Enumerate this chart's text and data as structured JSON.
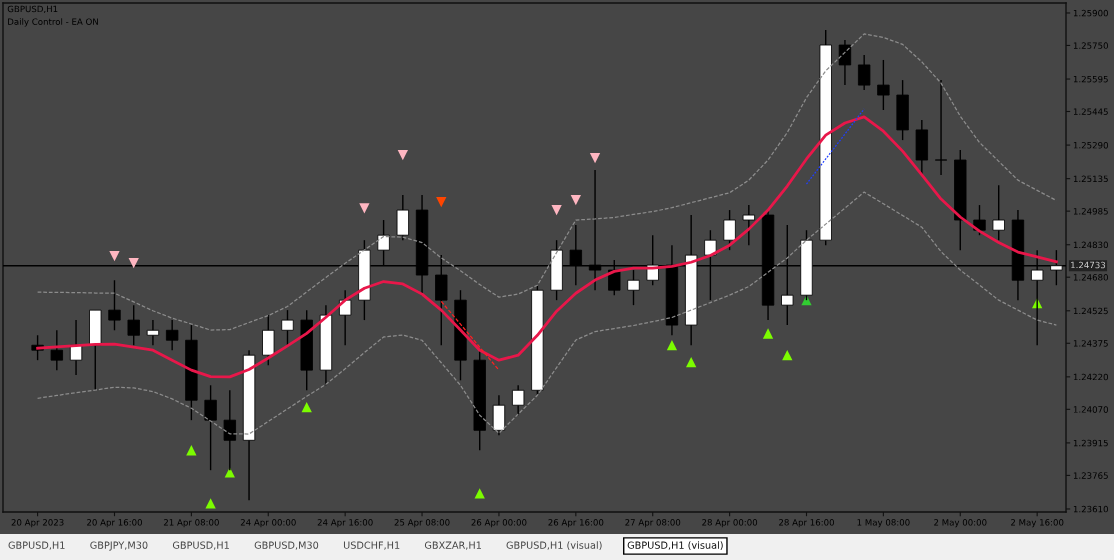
{
  "chart_data": {
    "type": "candlestick",
    "title": "GBPUSD,H1",
    "subtitle": "Daily Control - EA ON",
    "annotations": [
      "GBPUSD,H1",
      "GBPJPY,M30",
      "GBPUSD,H1",
      "GBPUSD,M30",
      "USDCHF,H1",
      "GBXZAR,H1",
      "GBPUSD,H1 (visual)",
      "GBPUSD,H1 (visual)"
    ],
    "color": "#000000",
    "categories": [
      "20 Apr 2023",
      null,
      null,
      null,
      "20 Apr 16:00",
      null,
      null,
      null,
      "21 Apr 08:00",
      null,
      null,
      null,
      "24 Apr 00:00",
      null,
      null,
      null,
      "24 Apr 16:00",
      null,
      null,
      null,
      "25 Apr 08:00",
      null,
      null,
      null,
      "26 Apr 00:00",
      null,
      null,
      null,
      "26 Apr 16:00",
      null,
      null,
      null,
      "27 Apr 08:00",
      null,
      null,
      null,
      "28 Apr 00:00",
      null,
      null,
      null,
      "28 Apr 16:00",
      null,
      null,
      null,
      "1 May 08:00",
      null,
      null,
      null,
      "2 May 00:00",
      null,
      null,
      null,
      "2 May 16:00",
      null
    ],
    "ohlc": [
      [
        1.24366,
        1.24412,
        1.24297,
        1.24343
      ],
      [
        1.24343,
        1.24435,
        1.24251,
        1.24297
      ],
      [
        1.24297,
        1.24482,
        1.24228,
        1.24366
      ],
      [
        1.24366,
        1.24528,
        1.24158,
        1.24528
      ],
      [
        1.24528,
        1.24666,
        1.24435,
        1.24482
      ],
      [
        1.24482,
        1.24551,
        1.24366,
        1.24412
      ],
      [
        1.24412,
        1.24482,
        1.24366,
        1.24435
      ],
      [
        1.24435,
        1.24482,
        1.24343,
        1.24389
      ],
      [
        1.24389,
        1.24459,
        1.2402,
        1.24112
      ],
      [
        1.24112,
        1.24181,
        1.23789,
        1.2402
      ],
      [
        1.2402,
        1.24158,
        1.23789,
        1.23927
      ],
      [
        1.23927,
        1.24343,
        1.2365,
        1.2432
      ],
      [
        1.2432,
        1.24505,
        1.24274,
        1.24435
      ],
      [
        1.24435,
        1.24528,
        1.24366,
        1.24482
      ],
      [
        1.24482,
        1.24528,
        1.24158,
        1.24251
      ],
      [
        1.24251,
        1.24551,
        1.24181,
        1.24505
      ],
      [
        1.24505,
        1.2462,
        1.24366,
        1.24574
      ],
      [
        1.24574,
        1.24851,
        1.24482,
        1.24805
      ],
      [
        1.24805,
        1.24944,
        1.24736,
        1.24874
      ],
      [
        1.24874,
        1.25059,
        1.24851,
        1.2499
      ],
      [
        1.2499,
        1.25059,
        1.24597,
        1.2469
      ],
      [
        1.2469,
        1.24782,
        1.24366,
        1.24574
      ],
      [
        1.24574,
        1.2462,
        1.24204,
        1.24297
      ],
      [
        1.24297,
        1.24343,
        1.23881,
        1.23973
      ],
      [
        1.23973,
        1.24135,
        1.2395,
        1.24089
      ],
      [
        1.24089,
        1.24181,
        1.24043,
        1.24158
      ],
      [
        1.24158,
        1.24643,
        1.24135,
        1.2462
      ],
      [
        1.2462,
        1.24851,
        1.24574,
        1.24805
      ],
      [
        1.24805,
        1.24921,
        1.24643,
        1.24736
      ],
      [
        1.24736,
        1.25175,
        1.2462,
        1.24713
      ],
      [
        1.24713,
        1.24759,
        1.24597,
        1.2462
      ],
      [
        1.2462,
        1.24713,
        1.24551,
        1.24666
      ],
      [
        1.24666,
        1.24874,
        1.24643,
        1.24736
      ],
      [
        1.24736,
        1.24828,
        1.24412,
        1.24459
      ],
      [
        1.24459,
        1.24967,
        1.24366,
        1.24782
      ],
      [
        1.24782,
        1.24897,
        1.24574,
        1.24851
      ],
      [
        1.24851,
        1.2499,
        1.24805,
        1.24944
      ],
      [
        1.24944,
        1.25013,
        1.24828,
        1.24967
      ],
      [
        1.24967,
        1.2499,
        1.24482,
        1.24551
      ],
      [
        1.24551,
        1.24921,
        1.24459,
        1.24597
      ],
      [
        1.24597,
        1.24897,
        1.24574,
        1.24851
      ],
      [
        1.24851,
        1.25821,
        1.24828,
        1.25752
      ],
      [
        1.25752,
        1.25775,
        1.25567,
        1.2566
      ],
      [
        1.2566,
        1.25706,
        1.25544,
        1.25567
      ],
      [
        1.25567,
        1.25683,
        1.25452,
        1.25521
      ],
      [
        1.25521,
        1.2559,
        1.25313,
        1.2536
      ],
      [
        1.2536,
        1.25406,
        1.25152,
        1.25221
      ],
      [
        1.25221,
        1.2559,
        1.25152,
        1.25221
      ],
      [
        1.25221,
        1.25267,
        1.24805,
        1.24944
      ],
      [
        1.24944,
        1.25013,
        1.24874,
        1.24897
      ],
      [
        1.24897,
        1.25105,
        1.24851,
        1.24944
      ],
      [
        1.24944,
        1.2499,
        1.24574,
        1.24666
      ],
      [
        1.24666,
        1.24805,
        1.24366,
        1.24713
      ],
      [
        1.24713,
        1.24805,
        1.24643,
        1.24733
      ]
    ],
    "series": [
      {
        "type": "line",
        "color": "#e8174a",
        "line_style": "solid",
        "values": [
          1.24352,
          1.24358,
          1.24364,
          1.2437,
          1.24371,
          1.24357,
          1.24343,
          1.24297,
          1.24251,
          1.24221,
          1.2422,
          1.24254,
          1.24307,
          1.24363,
          1.24421,
          1.24495,
          1.24574,
          1.24629,
          1.2466,
          1.24649,
          1.24602,
          1.24528,
          1.24436,
          1.24343,
          1.24297,
          1.2432,
          1.24412,
          1.24523,
          1.24606,
          1.24667,
          1.24707,
          1.24722,
          1.24722,
          1.2473,
          1.24749,
          1.2478,
          1.24828,
          1.24902,
          1.2499,
          1.25101,
          1.25226,
          1.25336,
          1.25392,
          1.2542,
          1.25354,
          1.25262,
          1.25152,
          1.25041,
          1.24958,
          1.24893,
          1.2484,
          1.24796,
          1.24774,
          1.24751
        ]
      },
      {
        "type": "line",
        "color": "#8c8c8c",
        "line_style": "dashed",
        "values": [
          1.24611,
          1.2461,
          1.24609,
          1.24607,
          1.24606,
          1.24566,
          1.24525,
          1.24491,
          1.24464,
          1.24436,
          1.24438,
          1.24471,
          1.24503,
          1.24545,
          1.24612,
          1.24679,
          1.24744,
          1.24806,
          1.24868,
          1.24865,
          1.2484,
          1.24769,
          1.2471,
          1.24646,
          1.24588,
          1.24602,
          1.24643,
          1.24794,
          1.24944,
          1.24949,
          1.24956,
          1.2497,
          1.24983,
          1.25001,
          1.25024,
          1.25047,
          1.2507,
          1.25128,
          1.25221,
          1.25348,
          1.25509,
          1.25633,
          1.25718,
          1.25803,
          1.25787,
          1.25755,
          1.25674,
          1.25576,
          1.25423,
          1.25302,
          1.25215,
          1.25128,
          1.25081,
          1.25034
        ]
      },
      {
        "type": "line",
        "color": "#8c8c8c",
        "line_style": "dashed",
        "values": [
          1.24121,
          1.24134,
          1.24147,
          1.24159,
          1.24172,
          1.24169,
          1.24152,
          1.24118,
          1.24075,
          1.24016,
          1.23957,
          1.23956,
          1.24014,
          1.24072,
          1.2413,
          1.24186,
          1.24257,
          1.24332,
          1.24404,
          1.24413,
          1.24389,
          1.24285,
          1.24181,
          1.24043,
          1.2396,
          1.24048,
          1.24135,
          1.24263,
          1.2439,
          1.24429,
          1.24443,
          1.24457,
          1.24475,
          1.24494,
          1.24528,
          1.24563,
          1.24597,
          1.24637,
          1.24703,
          1.24769,
          1.24851,
          1.24925,
          1.24999,
          1.25073,
          1.25019,
          1.24965,
          1.24911,
          1.24798,
          1.24713,
          1.24644,
          1.24574,
          1.24528,
          1.24482,
          1.24459
        ]
      },
      {
        "type": "line",
        "color": "#ff2020",
        "line_style": "dashed",
        "values": [
          null,
          null,
          null,
          null,
          null,
          null,
          null,
          null,
          null,
          null,
          null,
          null,
          null,
          null,
          null,
          null,
          null,
          null,
          null,
          null,
          null,
          1.24568,
          1.24463,
          1.24357,
          1.24251,
          null,
          null,
          null,
          null,
          null,
          null,
          null,
          null,
          null,
          null,
          null,
          null,
          null,
          null,
          null,
          null,
          null,
          null,
          null,
          null,
          null,
          null,
          null,
          null,
          null,
          null,
          null,
          null,
          null
        ]
      },
      {
        "type": "line",
        "color": "#2040ff",
        "line_style": "dotted",
        "values": [
          null,
          null,
          null,
          null,
          null,
          null,
          null,
          null,
          null,
          null,
          null,
          null,
          null,
          null,
          null,
          null,
          null,
          null,
          null,
          null,
          null,
          null,
          null,
          null,
          null,
          null,
          null,
          null,
          null,
          null,
          null,
          null,
          null,
          null,
          null,
          null,
          null,
          null,
          null,
          null,
          1.2511,
          1.25226,
          1.25341,
          1.25457,
          null,
          null,
          null,
          null,
          null,
          null,
          null,
          null,
          null,
          null
        ]
      },
      {
        "type": "scatter",
        "color": "#ffb6c1",
        "marker": "triangle_down",
        "values": [
          null,
          null,
          null,
          null,
          1.24777,
          1.24745,
          null,
          null,
          null,
          null,
          null,
          null,
          null,
          null,
          null,
          null,
          null,
          1.24998,
          null,
          1.25244,
          null,
          null,
          null,
          null,
          null,
          null,
          null,
          1.2499,
          1.25036,
          1.2523,
          null,
          null,
          null,
          null,
          null,
          null,
          null,
          null,
          null,
          null,
          null,
          null,
          null,
          null,
          null,
          null,
          null,
          null,
          null,
          null,
          null,
          null,
          null,
          null
        ]
      },
      {
        "type": "scatter",
        "color": "#ff4500",
        "marker": "triangle_down",
        "values": [
          null,
          null,
          null,
          null,
          null,
          null,
          null,
          null,
          null,
          null,
          null,
          null,
          null,
          null,
          null,
          null,
          null,
          null,
          null,
          null,
          null,
          1.25027,
          null,
          null,
          null,
          null,
          null,
          null,
          null,
          null,
          null,
          null,
          null,
          null,
          null,
          null,
          null,
          null,
          null,
          null,
          null,
          null,
          null,
          null,
          null,
          null,
          null,
          null,
          null,
          null,
          null,
          null,
          null,
          null
        ]
      },
      {
        "type": "scatter",
        "color": "#7cfc00",
        "marker": "triangle",
        "values": [
          null,
          null,
          null,
          null,
          null,
          null,
          null,
          null,
          1.23881,
          1.23636,
          1.23779,
          null,
          null,
          null,
          1.2408,
          null,
          null,
          null,
          null,
          null,
          null,
          null,
          null,
          1.23682,
          null,
          null,
          null,
          null,
          null,
          null,
          null,
          null,
          null,
          1.24366,
          1.24288,
          null,
          null,
          null,
          1.2442,
          1.2432,
          null,
          null,
          null,
          null,
          null,
          null,
          null,
          null,
          null,
          null,
          null,
          null,
          1.2456,
          null
        ]
      },
      {
        "type": "scatter",
        "color": "#32cd32",
        "marker": "triangle",
        "values": [
          null,
          null,
          null,
          null,
          null,
          null,
          null,
          null,
          null,
          null,
          null,
          null,
          null,
          null,
          null,
          null,
          null,
          null,
          null,
          null,
          null,
          null,
          null,
          null,
          null,
          null,
          null,
          null,
          null,
          null,
          null,
          null,
          null,
          null,
          null,
          null,
          null,
          null,
          null,
          null,
          1.24574,
          null,
          null,
          null,
          null,
          null,
          null,
          null,
          null,
          null,
          null,
          null,
          null,
          null
        ]
      }
    ],
    "ref_lines": [
      {
        "axis": "y",
        "value": 1.24733,
        "label": "1.24733",
        "color": "#000000"
      }
    ],
    "ylim": [
      1.23596,
      1.25946
    ],
    "yticks": [
      {
        "value": 1.259,
        "label": "1.25900"
      },
      {
        "value": 1.2575,
        "label": "1.25750"
      },
      {
        "value": 1.25595,
        "label": "1.25595"
      },
      {
        "value": 1.25445,
        "label": "1.25445"
      },
      {
        "value": 1.2529,
        "label": "1.25290"
      },
      {
        "value": 1.25135,
        "label": "1.25135"
      },
      {
        "value": 1.24985,
        "label": "1.24985"
      },
      {
        "value": 1.2483,
        "label": "1.24830"
      },
      {
        "value": 1.2468,
        "label": "1.24680"
      },
      {
        "value": 1.24525,
        "label": "1.24525"
      },
      {
        "value": 1.24375,
        "label": "1.24375"
      },
      {
        "value": 1.2422,
        "label": "1.24220"
      },
      {
        "value": 1.2407,
        "label": "1.24070"
      },
      {
        "value": 1.23915,
        "label": "1.23915"
      },
      {
        "value": 1.23765,
        "label": "1.23765"
      },
      {
        "value": 1.2361,
        "label": "1.23610"
      }
    ],
    "grid": false,
    "legend": false
  }
}
